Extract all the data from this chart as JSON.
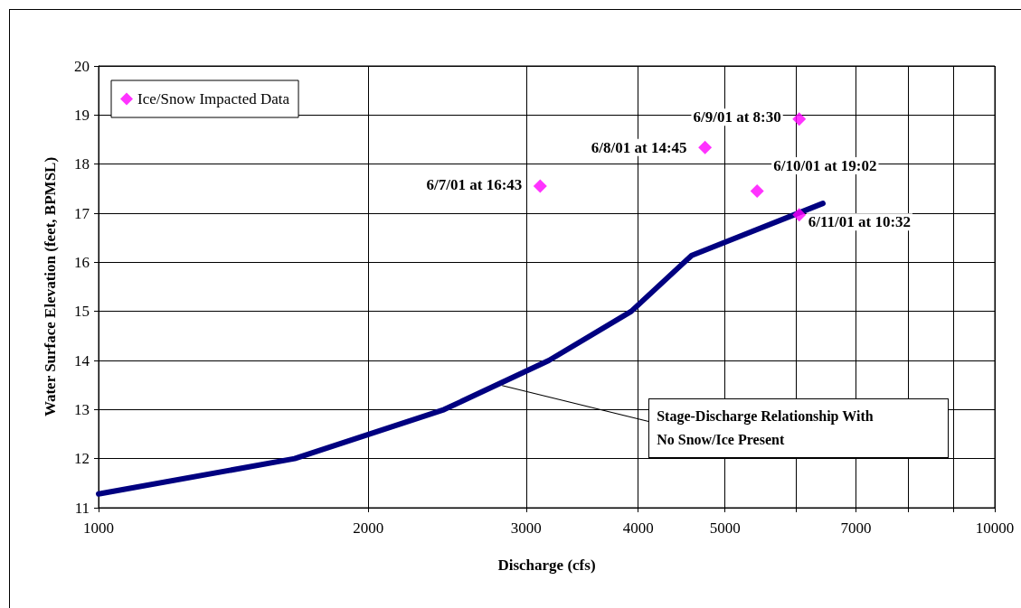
{
  "chart_data": {
    "type": "line",
    "xlabel": "Discharge (cfs)",
    "ylabel": "Water Surface Elevation (feet, BPMSL)",
    "log": "x",
    "xlim": [
      1000,
      10000
    ],
    "xticks": [
      1000,
      2000,
      3000,
      4000,
      5000,
      {
        "value": 6000,
        "label": null
      },
      7000,
      {
        "value": 8000,
        "label": null
      },
      {
        "value": 9000,
        "label": null
      },
      10000
    ],
    "ylim": [
      11,
      20
    ],
    "yticks": [
      11,
      12,
      13,
      14,
      15,
      16,
      17,
      18,
      19,
      20
    ],
    "grid": true,
    "legend": "top left",
    "series": [
      {
        "type": "line",
        "color": "#000080",
        "marker": "none",
        "line_style": "solid",
        "x": [
          1000,
          1655,
          2430,
          3180,
          3930,
          4590,
          6430
        ],
        "values": [
          11.28,
          12.0,
          13.0,
          14.0,
          15.0,
          16.14,
          17.2
        ]
      },
      {
        "type": "scatter",
        "name": "Ice/Snow Impacted Data",
        "color": "#ff00ff",
        "marker": "diamond",
        "x": [
          3110,
          4750,
          6050,
          5430,
          6050
        ],
        "values": [
          17.55,
          18.34,
          18.92,
          17.45,
          16.97
        ]
      }
    ],
    "annotations": [
      {
        "text": "6/7/01 at 16:43",
        "x": 3110,
        "y": 17.55
      },
      {
        "text": "6/8/01 at 14:45",
        "x": 4750,
        "y": 18.34
      },
      {
        "text": "6/9/01 at 8:30",
        "x": 6050,
        "y": 18.92
      },
      {
        "text": "6/10/01 at 19:02",
        "x": 5430,
        "y": 17.45
      },
      {
        "text": "6/11/01 at 10:32",
        "x": 6050,
        "y": 16.97
      },
      {
        "text": "Stage-Discharge Relationship With No Snow/Ice Present",
        "x": 2820,
        "y": 13.49
      }
    ]
  }
}
